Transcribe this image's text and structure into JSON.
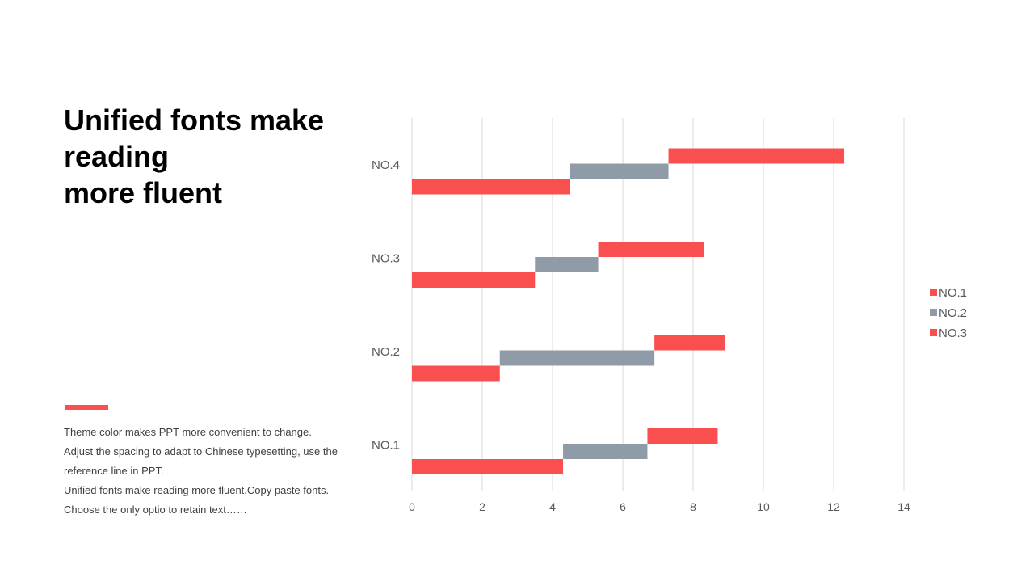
{
  "slide": {
    "title_lines": [
      "Unified fonts make",
      "reading",
      "more fluent"
    ],
    "body_paragraphs": [
      "Theme  color makes PPT more convenient  to change.",
      "Adjust the spacing to adapt to Chinese typesetting, use the reference line in PPT.",
      "Unified  fonts make reading more fluent.Copy paste fonts. Choose the only optio to retain text……"
    ],
    "accent_color": "#f94f4f"
  },
  "chart_data": {
    "type": "bar",
    "orientation": "horizontal",
    "stacked": true,
    "categories": [
      "NO.1",
      "NO.2",
      "NO.3",
      "NO.4"
    ],
    "series": [
      {
        "name": "NO.1",
        "color": "#f94f4f",
        "values": [
          4.3,
          2.5,
          3.5,
          4.5
        ]
      },
      {
        "name": "NO.2",
        "color": "#8f9ba6",
        "values": [
          2.4,
          4.4,
          1.8,
          2.8
        ]
      },
      {
        "name": "NO.3",
        "color": "#f94f4f",
        "values": [
          2.0,
          2.0,
          3.0,
          5.0
        ]
      }
    ],
    "xlim": [
      0,
      14
    ],
    "xticks": [
      "0",
      "2",
      "4",
      "6",
      "8",
      "10",
      "12",
      "14"
    ],
    "grid": true,
    "legend_position": "right"
  }
}
